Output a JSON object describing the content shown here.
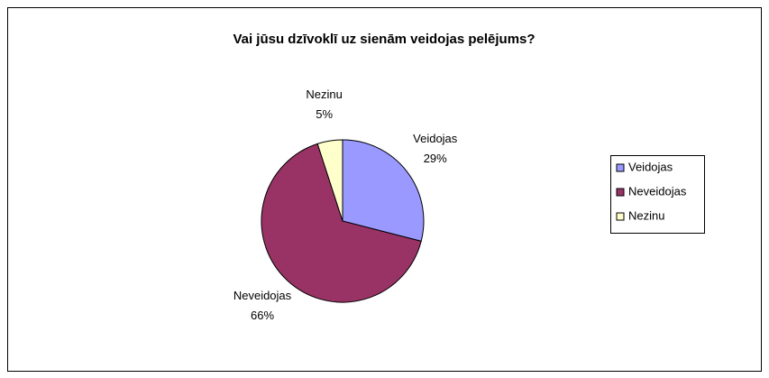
{
  "chart_data": {
    "type": "pie",
    "title": "Vai jūsu dzīvoklī uz sienām veidojas pelējums?",
    "categories": [
      "Veidojas",
      "Neveidojas",
      "Nezinu"
    ],
    "values": [
      29,
      66,
      5
    ],
    "value_labels": [
      "29%",
      "66%",
      "5%"
    ],
    "colors": [
      "#9999ff",
      "#993366",
      "#ffffcc"
    ],
    "legend": "right"
  }
}
